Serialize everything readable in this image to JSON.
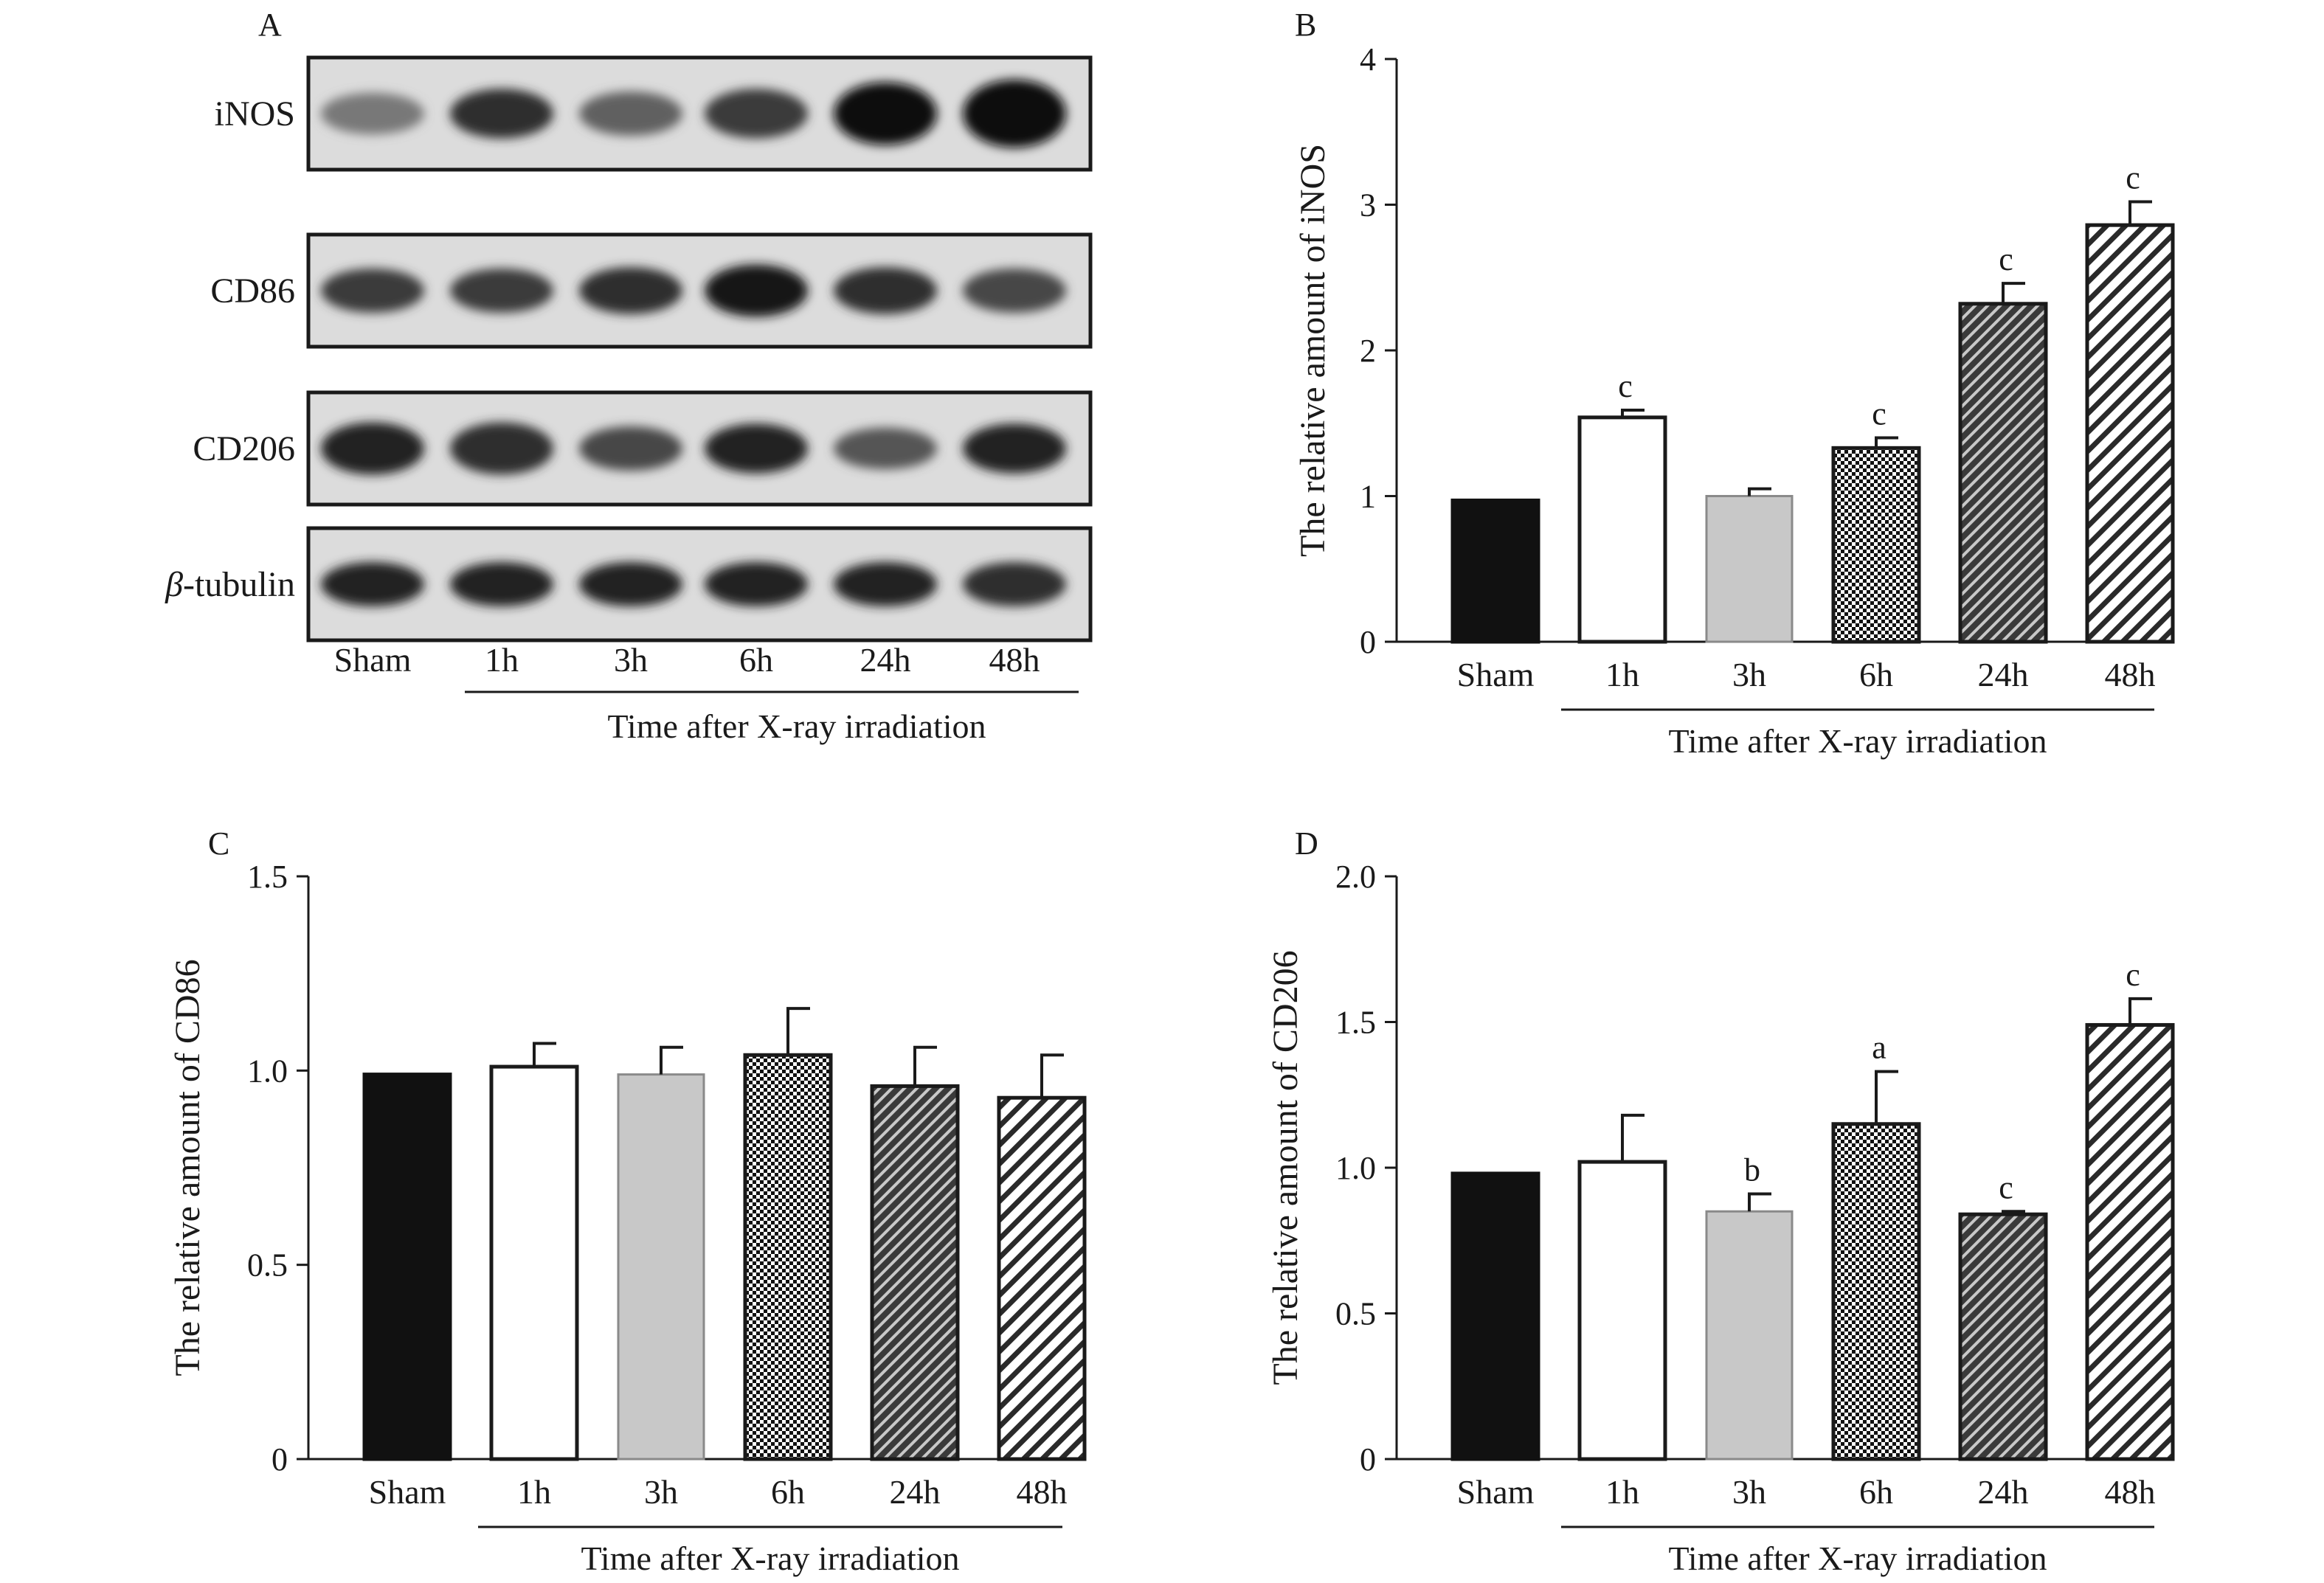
{
  "panel_a": {
    "letter": "A",
    "rows": [
      {
        "label": "iNOS",
        "italic_prefix": "",
        "intensity": [
          0.55,
          0.85,
          0.65,
          0.8,
          1.0,
          1.0
        ],
        "thickness": [
          0.45,
          0.6,
          0.5,
          0.6,
          0.85,
          0.95
        ]
      },
      {
        "label": "CD86",
        "italic_prefix": "",
        "intensity": [
          0.8,
          0.8,
          0.85,
          0.95,
          0.85,
          0.75
        ],
        "thickness": [
          0.5,
          0.5,
          0.55,
          0.65,
          0.55,
          0.5
        ]
      },
      {
        "label": "CD206",
        "italic_prefix": "",
        "intensity": [
          0.9,
          0.85,
          0.75,
          0.9,
          0.7,
          0.9
        ],
        "thickness": [
          0.65,
          0.65,
          0.5,
          0.6,
          0.45,
          0.6
        ]
      },
      {
        "label": "-tubulin",
        "italic_prefix": "β",
        "intensity": [
          0.9,
          0.9,
          0.9,
          0.9,
          0.9,
          0.85
        ],
        "thickness": [
          0.5,
          0.5,
          0.5,
          0.5,
          0.5,
          0.5
        ]
      }
    ],
    "lanes": [
      "Sham",
      "1h",
      "3h",
      "6h",
      "24h",
      "48h"
    ],
    "xlabel": "Time after X-ray irradiation"
  },
  "chart_data": [
    {
      "panel": "B",
      "type": "bar",
      "title": "",
      "categories": [
        "Sham",
        "1h",
        "3h",
        "6h",
        "24h",
        "48h"
      ],
      "values": [
        0.97,
        1.54,
        1.0,
        1.33,
        2.32,
        2.86
      ],
      "errors": [
        0.0,
        0.05,
        0.05,
        0.07,
        0.14,
        0.16
      ],
      "annotations": [
        "",
        "c",
        "",
        "c",
        "c",
        "c"
      ],
      "fills": [
        "solid-black",
        "white",
        "gray",
        "checker",
        "dark-diagonal",
        "light-diagonal"
      ],
      "ylabel": "The relative amount of iNOS",
      "xlabel": "Time after X-ray irradiation",
      "ylim": [
        0,
        4
      ],
      "yticks": [
        "0",
        "1",
        "2",
        "3",
        "4"
      ],
      "ytick_values": [
        0,
        1,
        2,
        3,
        4
      ]
    },
    {
      "panel": "C",
      "type": "bar",
      "title": "",
      "categories": [
        "Sham",
        "1h",
        "3h",
        "6h",
        "24h",
        "48h"
      ],
      "values": [
        0.99,
        1.01,
        0.99,
        1.04,
        0.96,
        0.93
      ],
      "errors": [
        0.0,
        0.06,
        0.07,
        0.12,
        0.1,
        0.11
      ],
      "annotations": [
        "",
        "",
        "",
        "",
        "",
        ""
      ],
      "fills": [
        "solid-black",
        "white",
        "gray",
        "checker",
        "dark-diagonal",
        "light-diagonal"
      ],
      "ylabel": "The relative amount of CD86",
      "xlabel": "Time after X-ray irradiation",
      "ylim": [
        0,
        1.5
      ],
      "yticks": [
        "0",
        "0.5",
        "1.0",
        "1.5"
      ],
      "ytick_values": [
        0,
        0.5,
        1.0,
        1.5
      ]
    },
    {
      "panel": "D",
      "type": "bar",
      "title": "",
      "categories": [
        "Sham",
        "1h",
        "3h",
        "6h",
        "24h",
        "48h"
      ],
      "values": [
        0.98,
        1.02,
        0.85,
        1.15,
        0.84,
        1.49
      ],
      "errors": [
        0.0,
        0.16,
        0.06,
        0.18,
        0.01,
        0.09
      ],
      "annotations": [
        "",
        "",
        "b",
        "a",
        "c",
        "c"
      ],
      "fills": [
        "solid-black",
        "white",
        "gray",
        "checker",
        "dark-diagonal",
        "light-diagonal"
      ],
      "ylabel": "The relative amount of CD206",
      "xlabel": "Time after X-ray irradiation",
      "ylim": [
        0,
        2.0
      ],
      "yticks": [
        "0",
        "0.5",
        "1.0",
        "1.5",
        "2.0"
      ],
      "ytick_values": [
        0,
        0.5,
        1.0,
        1.5,
        2.0
      ]
    }
  ]
}
